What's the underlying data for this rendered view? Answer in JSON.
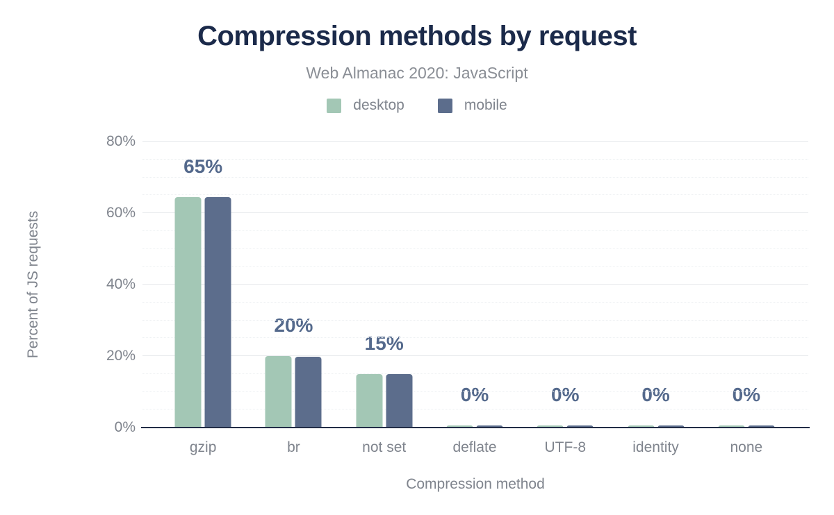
{
  "chart_data": {
    "type": "bar",
    "title": "Compression methods by request",
    "subtitle": "Web Almanac 2020: JavaScript",
    "xlabel": "Compression method",
    "ylabel": "Percent of JS requests",
    "categories": [
      "gzip",
      "br",
      "not set",
      "deflate",
      "UTF-8",
      "identity",
      "none"
    ],
    "series": [
      {
        "name": "desktop",
        "color": "#a3c7b5",
        "values": [
          64.5,
          20,
          15,
          0.3,
          0.2,
          0.1,
          0.1
        ]
      },
      {
        "name": "mobile",
        "color": "#5c6d8c",
        "values": [
          64.4,
          19.9,
          15,
          0.3,
          0.2,
          0.1,
          0.1
        ]
      }
    ],
    "group_labels": [
      "65%",
      "20%",
      "15%",
      "0%",
      "0%",
      "0%",
      "0%"
    ],
    "y_ticks": [
      {
        "value": 0,
        "label": "0%"
      },
      {
        "value": 20,
        "label": "20%"
      },
      {
        "value": 40,
        "label": "40%"
      },
      {
        "value": 60,
        "label": "60%"
      },
      {
        "value": 80,
        "label": "80%"
      }
    ],
    "ylim": [
      0,
      80
    ],
    "y_minor_step": 5,
    "grid": "horizontal",
    "legend_position": "top",
    "colors": {
      "title": "#1b2a4a",
      "subtitle": "#8a8e95",
      "axis_text": "#7f848d",
      "value_label": "#54698c",
      "baseline": "#222d47",
      "grid_major": "#e8eaed",
      "grid_minor": "#edf0f2",
      "background": "#ffffff"
    }
  }
}
